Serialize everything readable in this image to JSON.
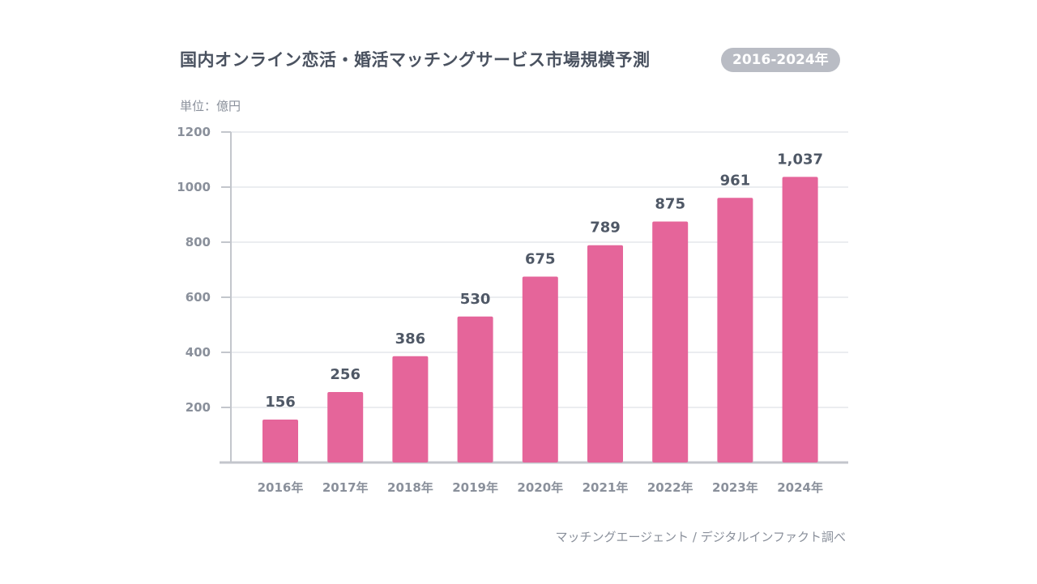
{
  "chart_data": {
    "type": "bar",
    "title": "国内オンライン恋活・婚活マッチングサービス市場規模予測",
    "period_badge": "2016-2024年",
    "unit_label": "単位：億円",
    "source": "マッチングエージェント / デジタルインファクト調べ",
    "categories": [
      "2016年",
      "2017年",
      "2018年",
      "2019年",
      "2020年",
      "2021年",
      "2022年",
      "2023年",
      "2024年"
    ],
    "values": [
      156,
      256,
      386,
      530,
      675,
      789,
      875,
      961,
      1037
    ],
    "data_labels": [
      "156",
      "256",
      "386",
      "530",
      "675",
      "789",
      "875",
      "961",
      "1,037"
    ],
    "yticks": [
      200,
      400,
      600,
      800,
      1000,
      1200
    ],
    "ylim": [
      0,
      1200
    ],
    "bar_color": "#e5659a",
    "grid": true
  }
}
